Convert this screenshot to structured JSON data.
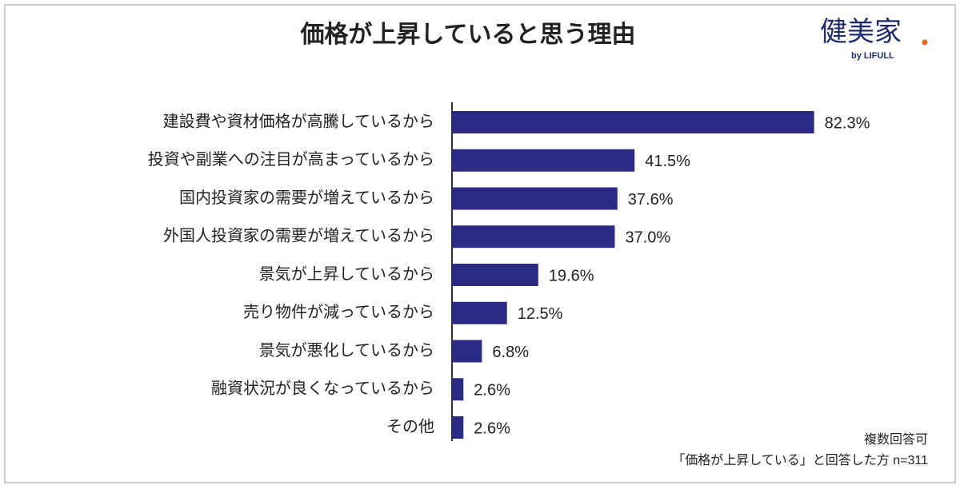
{
  "chart_data": {
    "type": "bar",
    "orientation": "horizontal",
    "title": "価格が上昇していると思う理由",
    "categories": [
      "建設費や資材価格が高騰しているから",
      "投資や副業への注目が高まっているから",
      "国内投資家の需要が増えているから",
      "外国人投資家の需要が増えているから",
      "景気が上昇しているから",
      "売り物件が減っているから",
      "景気が悪化しているから",
      "融資状況が良くなっているから",
      "その他"
    ],
    "values": [
      82.3,
      41.5,
      37.6,
      37.0,
      19.6,
      12.5,
      6.8,
      2.6,
      2.6
    ],
    "value_labels": [
      "82.3%",
      "41.5%",
      "37.6%",
      "37.0%",
      "19.6%",
      "12.5%",
      "6.8%",
      "2.6%",
      "2.6%"
    ],
    "color": "#2d2a85",
    "notes": [
      "複数回答可",
      "「価格が上昇している」と回答した方 n=311"
    ]
  },
  "logo": {
    "name": "健美家",
    "sub": "by LIFULL"
  }
}
